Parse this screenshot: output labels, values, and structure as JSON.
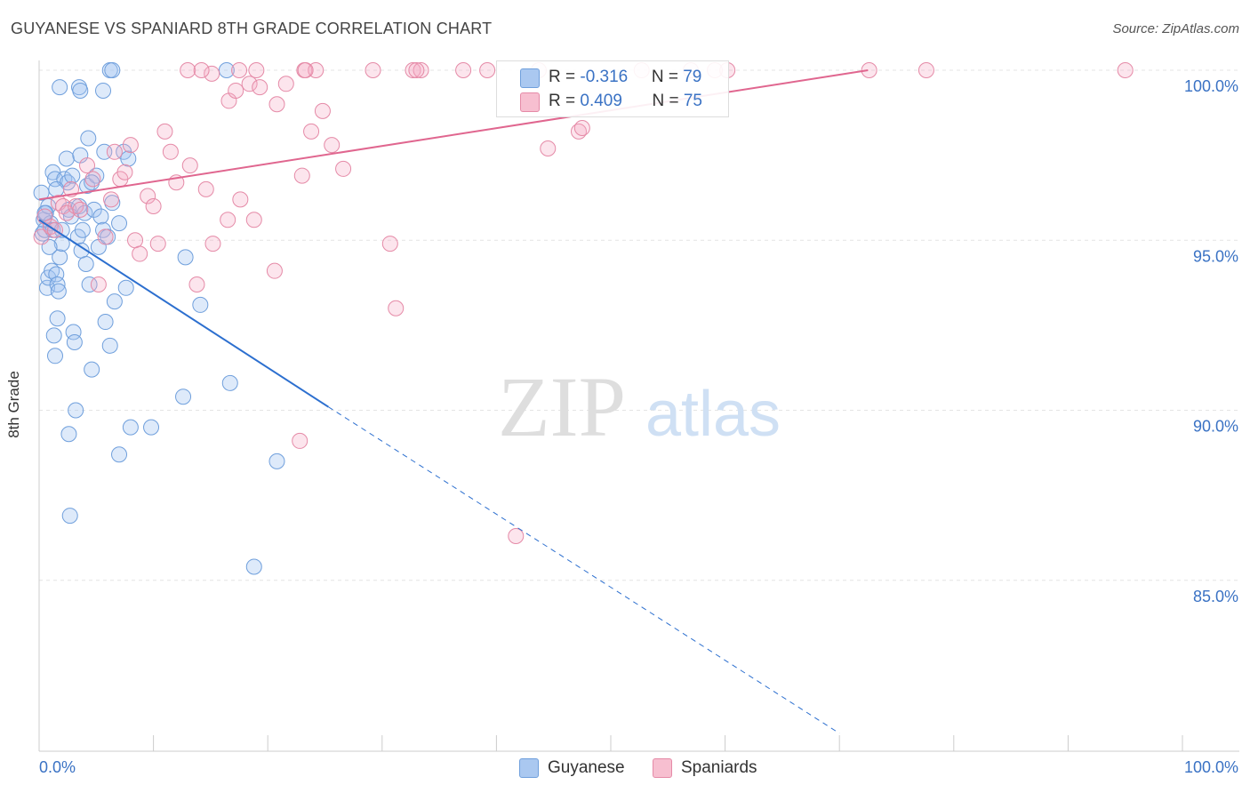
{
  "header": {
    "title": "GUYANESE VS SPANIARD 8TH GRADE CORRELATION CHART",
    "source": "Source: ZipAtlas.com"
  },
  "watermark": {
    "zip": "ZIP",
    "atlas": "atlas"
  },
  "legend": {
    "rows": [
      {
        "r_label": "R = ",
        "r_value": "-0.316",
        "n_label": "N = ",
        "n_value": "79",
        "color": "#aac8f0",
        "stroke": "#6f9fdc"
      },
      {
        "r_label": "R = ",
        "r_value": "0.409",
        "n_label": "N = ",
        "n_value": "75",
        "color": "#f7bfd0",
        "stroke": "#e58aa7"
      }
    ]
  },
  "bottom_legend": [
    {
      "label": "Guyanese",
      "color": "#aac8f0",
      "stroke": "#6f9fdc"
    },
    {
      "label": "Spaniards",
      "color": "#f7bfd0",
      "stroke": "#e58aa7"
    }
  ],
  "chart_data": {
    "type": "scatter",
    "title": "GUYANESE VS SPANIARD 8TH GRADE CORRELATION CHART",
    "xlabel": "",
    "ylabel": "8th Grade",
    "xlim": [
      0,
      100
    ],
    "ylim": [
      80.5,
      100.8
    ],
    "x_tick_labels": [
      "0.0%",
      "100.0%"
    ],
    "y_ticks": [
      85,
      90,
      95,
      100
    ],
    "y_tick_labels": [
      "85.0%",
      "90.0%",
      "95.0%",
      "100.0%"
    ],
    "grid": true,
    "series": [
      {
        "name": "Guyanese",
        "color": "#6f9fdc",
        "fill": "rgba(160,195,240,0.35)",
        "trend": {
          "x": [
            0,
            25.3
          ],
          "y": [
            95.6,
            90.1
          ],
          "dashed_to": [
            70,
            80.5
          ],
          "color": "#2c6fcf"
        },
        "points": [
          [
            0.2,
            96.4
          ],
          [
            0.3,
            95.2
          ],
          [
            0.4,
            95.6
          ],
          [
            0.5,
            95.3
          ],
          [
            0.6,
            95.8
          ],
          [
            0.8,
            96.0
          ],
          [
            1.0,
            95.5
          ],
          [
            1.2,
            95.3
          ],
          [
            0.7,
            93.6
          ],
          [
            0.8,
            93.9
          ],
          [
            1.1,
            94.1
          ],
          [
            1.2,
            97.0
          ],
          [
            1.4,
            96.8
          ],
          [
            1.5,
            94.0
          ],
          [
            1.6,
            93.7
          ],
          [
            1.7,
            93.5
          ],
          [
            1.3,
            92.2
          ],
          [
            1.4,
            91.6
          ],
          [
            1.6,
            92.7
          ],
          [
            1.8,
            94.5
          ],
          [
            2.0,
            94.9
          ],
          [
            2.2,
            96.8
          ],
          [
            2.4,
            97.4
          ],
          [
            2.5,
            96.7
          ],
          [
            2.6,
            95.9
          ],
          [
            2.8,
            95.7
          ],
          [
            2.9,
            96.9
          ],
          [
            3.0,
            92.3
          ],
          [
            3.1,
            92.0
          ],
          [
            3.2,
            90.0
          ],
          [
            3.4,
            95.1
          ],
          [
            3.5,
            96.0
          ],
          [
            3.6,
            97.5
          ],
          [
            3.7,
            94.7
          ],
          [
            3.8,
            95.3
          ],
          [
            4.0,
            95.8
          ],
          [
            4.1,
            94.3
          ],
          [
            4.2,
            96.6
          ],
          [
            4.3,
            98.0
          ],
          [
            4.4,
            93.7
          ],
          [
            4.6,
            91.2
          ],
          [
            4.8,
            95.9
          ],
          [
            5.0,
            96.9
          ],
          [
            5.2,
            94.8
          ],
          [
            5.4,
            95.7
          ],
          [
            5.6,
            95.3
          ],
          [
            5.8,
            92.6
          ],
          [
            6.0,
            95.1
          ],
          [
            6.2,
            91.9
          ],
          [
            6.4,
            96.1
          ],
          [
            6.6,
            93.2
          ],
          [
            7.0,
            95.5
          ],
          [
            7.4,
            97.6
          ],
          [
            7.6,
            93.6
          ],
          [
            2.6,
            89.3
          ],
          [
            2.7,
            86.9
          ],
          [
            7.0,
            88.7
          ],
          [
            8.0,
            89.5
          ],
          [
            9.8,
            89.5
          ],
          [
            3.5,
            99.5
          ],
          [
            3.6,
            99.4
          ],
          [
            5.6,
            99.4
          ],
          [
            6.2,
            100.0
          ],
          [
            6.4,
            100.0
          ],
          [
            16.4,
            100.0
          ],
          [
            12.8,
            94.5
          ],
          [
            14.1,
            93.1
          ],
          [
            12.6,
            90.4
          ],
          [
            16.7,
            90.8
          ],
          [
            20.8,
            88.5
          ],
          [
            18.8,
            85.4
          ],
          [
            1.8,
            99.5
          ],
          [
            7.8,
            97.4
          ],
          [
            5.7,
            97.6
          ],
          [
            0.9,
            94.8
          ],
          [
            2.0,
            95.3
          ],
          [
            4.6,
            96.7
          ],
          [
            0.5,
            95.8
          ],
          [
            1.5,
            96.5
          ]
        ]
      },
      {
        "name": "Spaniards",
        "color": "#e58aa7",
        "fill": "rgba(245,170,195,0.30)",
        "trend": {
          "x": [
            0,
            72.5
          ],
          "y": [
            96.2,
            100.0
          ],
          "color": "#e0668f"
        },
        "points": [
          [
            0.2,
            95.1
          ],
          [
            0.5,
            95.7
          ],
          [
            1.0,
            95.4
          ],
          [
            1.4,
            95.3
          ],
          [
            1.7,
            96.1
          ],
          [
            2.1,
            96.0
          ],
          [
            2.4,
            95.8
          ],
          [
            2.8,
            96.5
          ],
          [
            3.2,
            96.0
          ],
          [
            3.6,
            95.9
          ],
          [
            4.2,
            97.2
          ],
          [
            4.7,
            96.8
          ],
          [
            5.2,
            93.7
          ],
          [
            5.8,
            95.1
          ],
          [
            6.3,
            96.2
          ],
          [
            6.6,
            97.6
          ],
          [
            7.1,
            96.8
          ],
          [
            7.5,
            97.0
          ],
          [
            8.0,
            97.8
          ],
          [
            8.4,
            95.0
          ],
          [
            8.8,
            94.6
          ],
          [
            9.5,
            96.3
          ],
          [
            10.0,
            96.0
          ],
          [
            10.4,
            94.9
          ],
          [
            11.0,
            98.2
          ],
          [
            11.5,
            97.6
          ],
          [
            12.0,
            96.7
          ],
          [
            13.2,
            97.2
          ],
          [
            13.8,
            93.7
          ],
          [
            14.6,
            96.5
          ],
          [
            15.2,
            94.9
          ],
          [
            16.5,
            95.6
          ],
          [
            17.6,
            96.2
          ],
          [
            18.8,
            95.6
          ],
          [
            20.6,
            94.1
          ],
          [
            22.8,
            89.1
          ],
          [
            23.0,
            96.9
          ],
          [
            23.8,
            98.2
          ],
          [
            24.8,
            98.8
          ],
          [
            25.6,
            97.8
          ],
          [
            26.6,
            97.1
          ],
          [
            15.1,
            99.9
          ],
          [
            16.6,
            99.1
          ],
          [
            17.2,
            99.4
          ],
          [
            18.4,
            99.6
          ],
          [
            19.3,
            99.5
          ],
          [
            20.8,
            99.0
          ],
          [
            21.6,
            99.6
          ],
          [
            13.0,
            100.0
          ],
          [
            14.2,
            100.0
          ],
          [
            17.5,
            100.0
          ],
          [
            19.0,
            100.0
          ],
          [
            23.2,
            100.0
          ],
          [
            24.2,
            100.0
          ],
          [
            29.2,
            100.0
          ],
          [
            32.7,
            100.0
          ],
          [
            33.4,
            100.0
          ],
          [
            37.1,
            100.0
          ],
          [
            39.2,
            100.0
          ],
          [
            43.7,
            100.0
          ],
          [
            52.7,
            100.0
          ],
          [
            57.0,
            100.0
          ],
          [
            59.1,
            100.0
          ],
          [
            60.2,
            100.0
          ],
          [
            72.6,
            100.0
          ],
          [
            77.6,
            100.0
          ],
          [
            95.0,
            100.0
          ],
          [
            30.7,
            94.9
          ],
          [
            31.2,
            93.0
          ],
          [
            41.7,
            86.3
          ],
          [
            44.5,
            97.7
          ],
          [
            47.2,
            98.2
          ],
          [
            47.5,
            98.3
          ],
          [
            23.3,
            100.0
          ],
          [
            33.0,
            100.0
          ]
        ]
      }
    ]
  }
}
